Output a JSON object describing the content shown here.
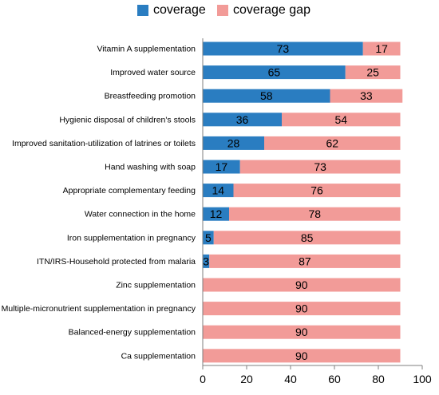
{
  "legend": {
    "coverage_label": "coverage",
    "gap_label": "coverage gap"
  },
  "colors": {
    "coverage": "#2a7dc1",
    "gap": "#f29b98",
    "axis": "#7f7f7f"
  },
  "chart_data": {
    "type": "bar",
    "orientation": "horizontal",
    "stacked": true,
    "title": "",
    "xlabel": "",
    "ylabel": "",
    "xlim": [
      0,
      100
    ],
    "xticks": [
      0,
      20,
      40,
      60,
      80,
      100
    ],
    "legend_position": "top",
    "grid": false,
    "categories": [
      "Vitamin A supplementation",
      "Improved water source",
      "Breastfeeding promotion",
      "Hygienic disposal of children's stools",
      "Improved sanitation-utilization of latrines or toilets",
      "Hand washing with soap",
      "Appropriate complementary feeding",
      "Water connection in the home",
      "Iron supplementation in pregnancy",
      "ITN/IRS-Household protected from malaria",
      "Zinc supplementation",
      "Multiple-micronutrient supplementation in pregnancy",
      "Balanced-energy supplementation",
      "Ca supplementation"
    ],
    "series": [
      {
        "name": "coverage",
        "values": [
          73,
          65,
          58,
          36,
          28,
          17,
          14,
          12,
          5,
          3,
          0,
          0,
          0,
          0
        ]
      },
      {
        "name": "coverage gap",
        "values": [
          17,
          25,
          33,
          54,
          62,
          73,
          76,
          78,
          85,
          87,
          90,
          90,
          90,
          90
        ]
      }
    ]
  }
}
